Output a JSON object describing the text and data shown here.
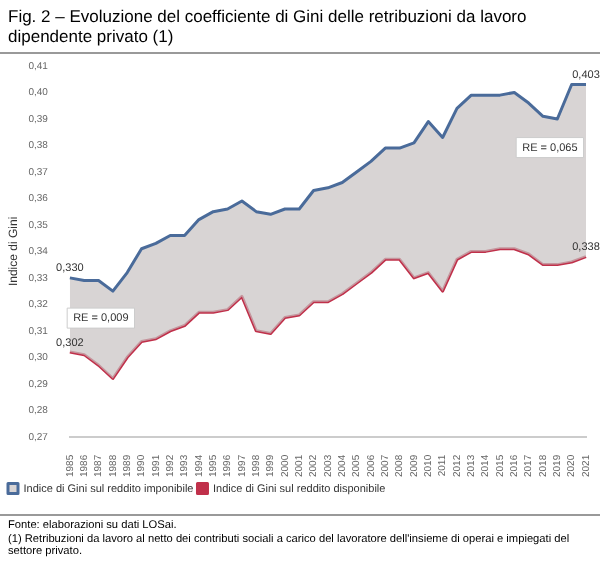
{
  "chart_data": {
    "type": "line",
    "title": "Fig. 2 – Evoluzione del coefficiente di Gini delle retribuzioni da lavoro dipendente privato (1)",
    "ylabel": "Indice di Gini",
    "categories": [
      "1985",
      "1986",
      "1987",
      "1988",
      "1989",
      "1990",
      "1991",
      "1992",
      "1993",
      "1994",
      "1995",
      "1996",
      "1997",
      "1998",
      "1999",
      "2000",
      "2001",
      "2002",
      "2003",
      "2004",
      "2005",
      "2006",
      "2007",
      "2008",
      "2009",
      "2010",
      "2011",
      "2012",
      "2013",
      "2014",
      "2015",
      "2016",
      "2017",
      "2018",
      "2019",
      "2020",
      "2021"
    ],
    "series": [
      {
        "name": "Indice di Gini sul reddito imponibile",
        "type": "area",
        "color": "#4a6b9a",
        "values": [
          0.33,
          0.329,
          0.329,
          0.325,
          0.332,
          0.341,
          0.343,
          0.346,
          0.346,
          0.352,
          0.355,
          0.356,
          0.359,
          0.355,
          0.354,
          0.356,
          0.356,
          0.363,
          0.364,
          0.366,
          0.37,
          0.374,
          0.379,
          0.379,
          0.381,
          0.389,
          0.383,
          0.394,
          0.399,
          0.399,
          0.399,
          0.4,
          0.396,
          0.391,
          0.39,
          0.403,
          0.403
        ],
        "value_labels": [
          "0,330",
          null,
          null,
          null,
          null,
          null,
          null,
          null,
          null,
          null,
          null,
          null,
          null,
          null,
          null,
          null,
          null,
          null,
          null,
          null,
          null,
          null,
          null,
          null,
          null,
          null,
          null,
          null,
          null,
          null,
          null,
          null,
          null,
          null,
          null,
          null,
          "0,403"
        ]
      },
      {
        "name": "Indice di Gini sul reddito disponibile",
        "color": "#c0304a",
        "values": [
          0.302,
          0.301,
          0.297,
          0.292,
          0.3,
          0.306,
          0.307,
          0.31,
          0.312,
          0.317,
          0.317,
          0.318,
          0.323,
          0.31,
          0.309,
          0.315,
          0.316,
          0.321,
          0.321,
          0.324,
          0.328,
          0.332,
          0.337,
          0.337,
          0.33,
          0.332,
          0.325,
          0.337,
          0.34,
          0.34,
          0.341,
          0.341,
          0.339,
          0.335,
          0.335,
          0.336,
          0.338
        ],
        "value_labels": [
          "0,302",
          null,
          null,
          null,
          null,
          null,
          null,
          null,
          null,
          null,
          null,
          null,
          null,
          null,
          null,
          null,
          null,
          null,
          null,
          null,
          null,
          null,
          null,
          null,
          null,
          null,
          null,
          null,
          null,
          null,
          null,
          null,
          null,
          null,
          null,
          null,
          "0,338"
        ]
      }
    ],
    "ylim": [
      0.27,
      0.41
    ],
    "yticks": [
      {
        "value": 0.27,
        "label": "0,27"
      },
      {
        "value": 0.28,
        "label": "0,28"
      },
      {
        "value": 0.29,
        "label": "0,29"
      },
      {
        "value": 0.3,
        "label": "0,30"
      },
      {
        "value": 0.31,
        "label": "0,31"
      },
      {
        "value": 0.32,
        "label": "0,32"
      },
      {
        "value": 0.33,
        "label": "0,33"
      },
      {
        "value": 0.34,
        "label": "0,34"
      },
      {
        "value": 0.35,
        "label": "0,35"
      },
      {
        "value": 0.36,
        "label": "0,36"
      },
      {
        "value": 0.37,
        "label": "0,37"
      },
      {
        "value": 0.38,
        "label": "0,38"
      },
      {
        "value": 0.39,
        "label": "0,39"
      },
      {
        "value": 0.4,
        "label": "0,40"
      },
      {
        "value": 0.41,
        "label": "0,41"
      }
    ],
    "grid": false,
    "legend": "bottom left",
    "marker": "none",
    "line_style": "solid",
    "annotations": [
      "RE = 0,009",
      "RE = 0,065",
      "Fonte: elaborazioni su dati LOSai.",
      "(1) Retribuzioni da lavoro al netto dei contributi sociali a carico del lavoratore dell'insieme di operai e impiegati del settore privato."
    ]
  }
}
